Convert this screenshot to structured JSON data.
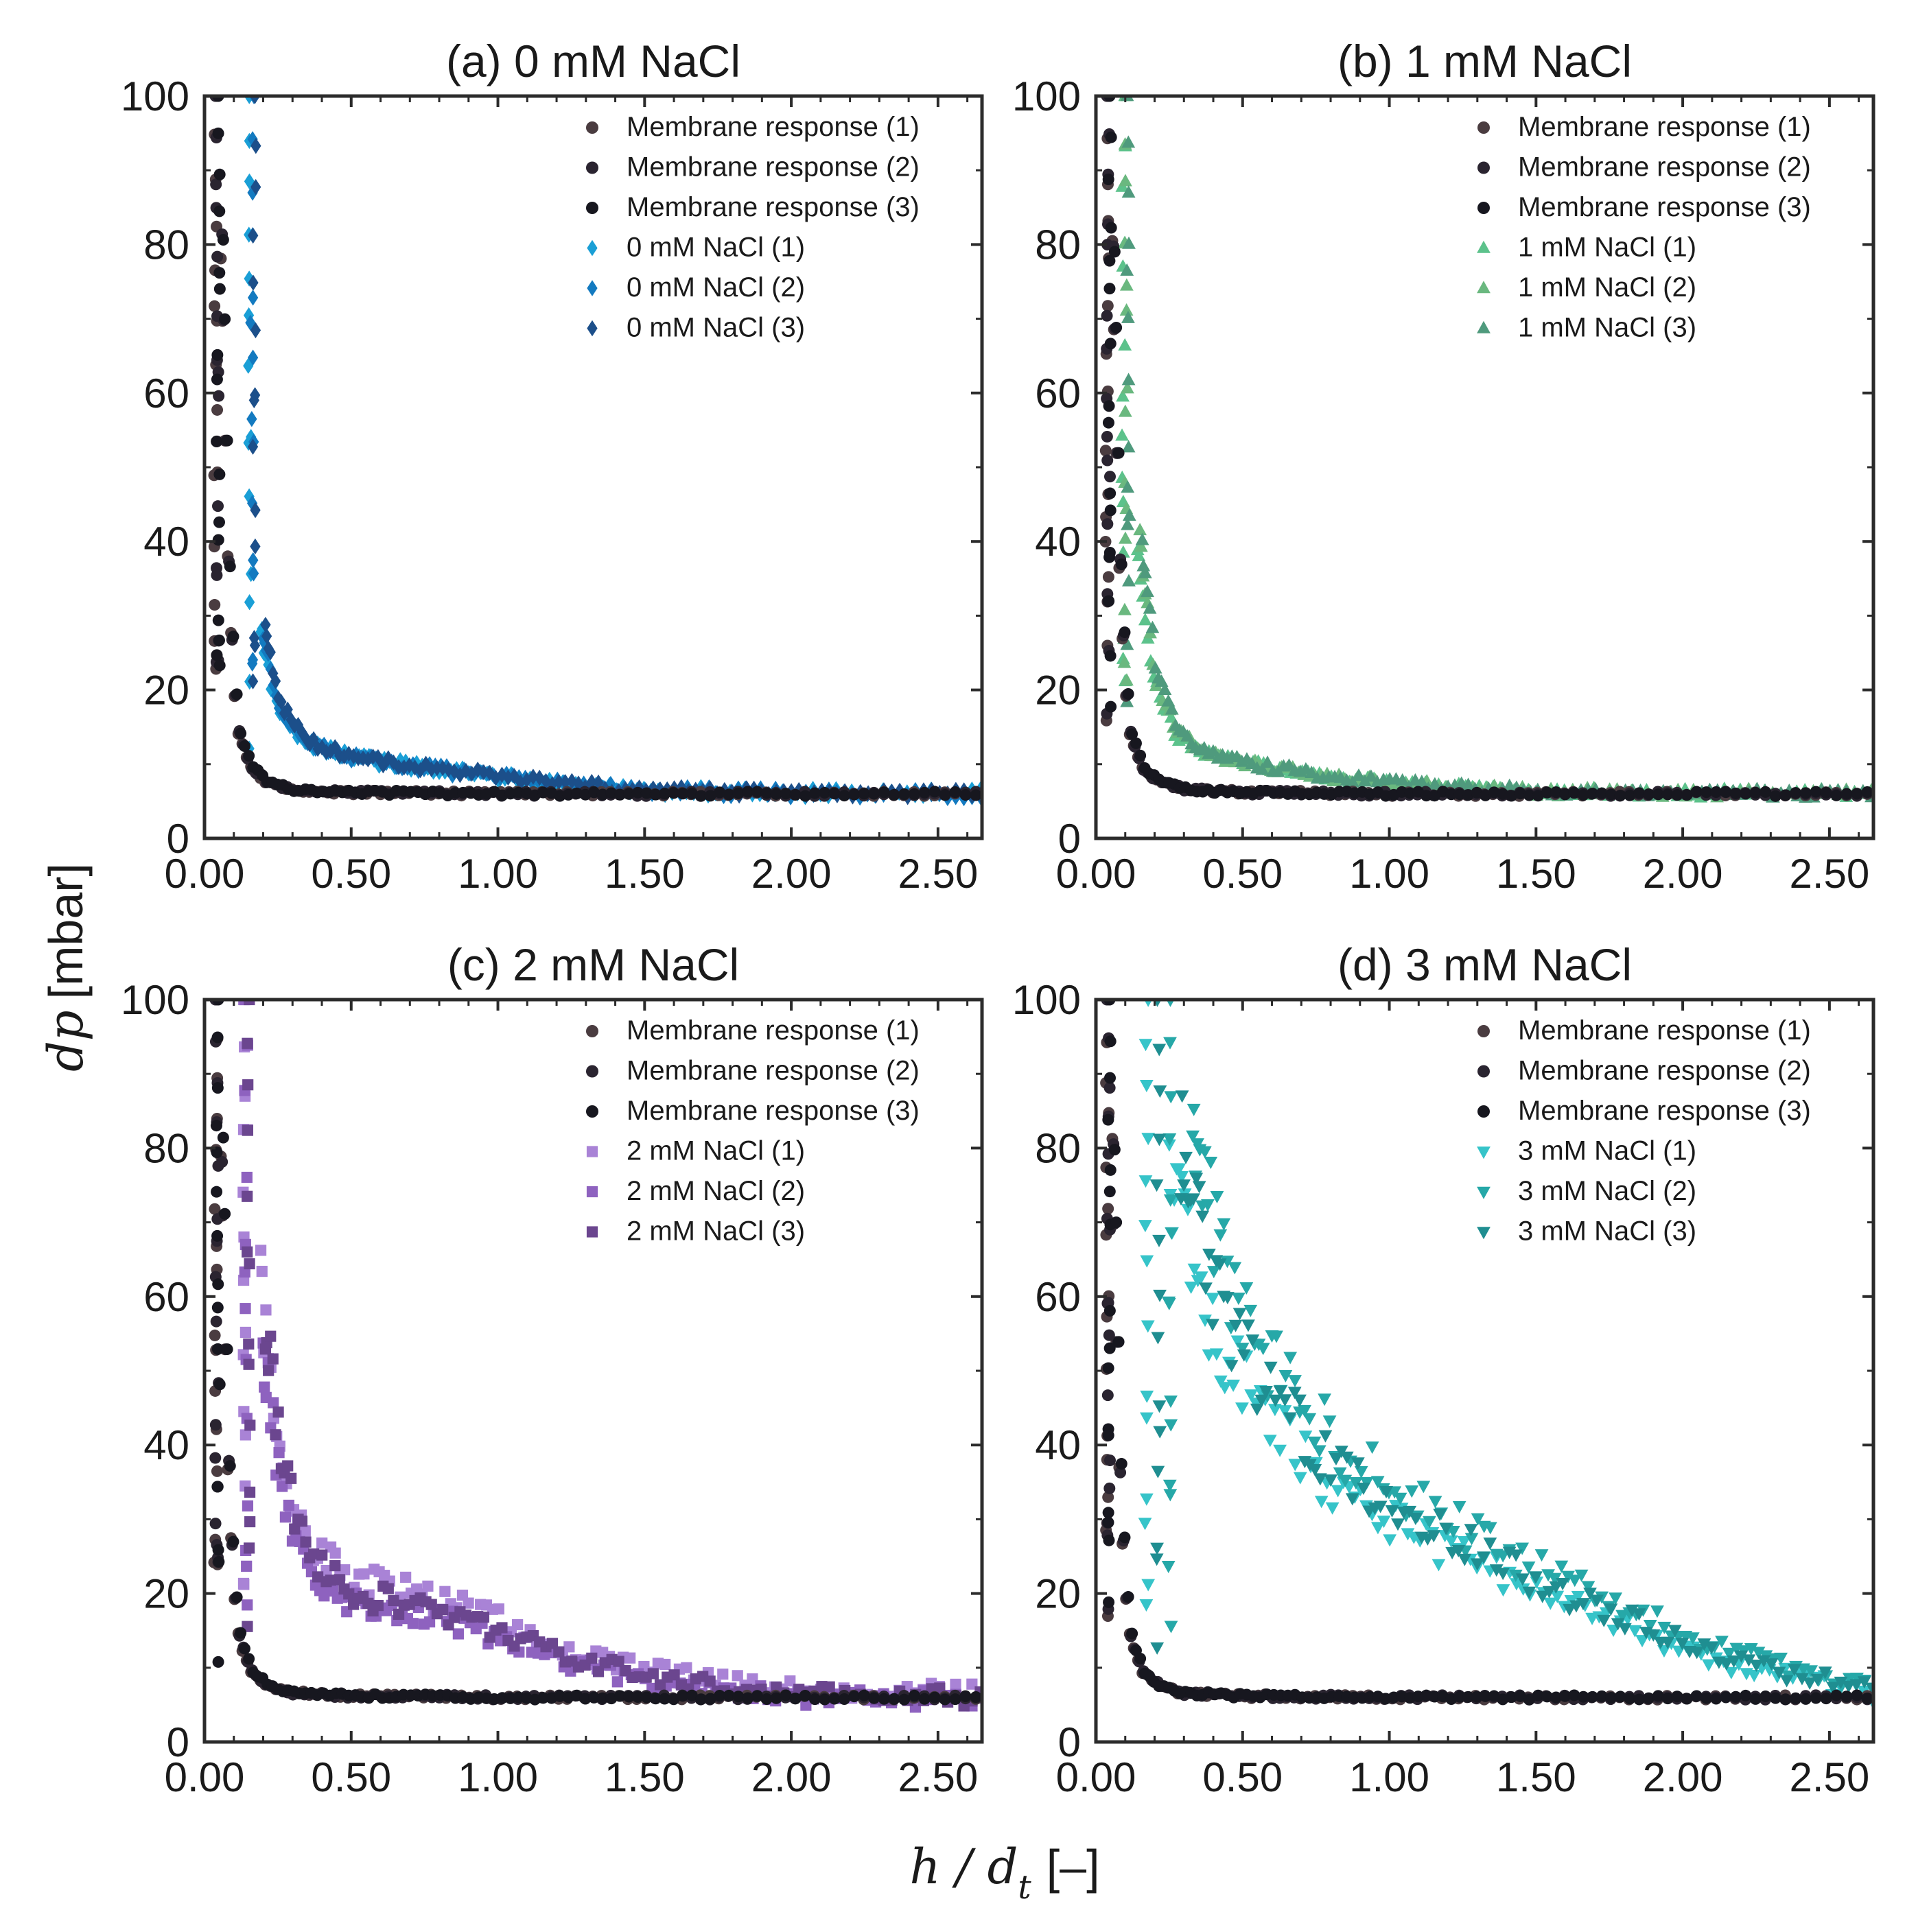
{
  "figure": {
    "ylabel": "[mbar]",
    "ylabel_var": "dp",
    "xlabel": "[–]",
    "xlabel_var": "h / d",
    "xlabel_sub": "t"
  },
  "chart_data": [
    {
      "type": "scatter",
      "title": "(a) 0 mM NaCl",
      "xlabel": "h / d_t [–]",
      "ylabel": "dp [mbar]",
      "xlim": [
        0.0,
        2.65
      ],
      "ylim": [
        0,
        100
      ],
      "xticks": [
        "0.00",
        "0.50",
        "1.00",
        "1.50",
        "2.00",
        "2.50"
      ],
      "yticks": [
        "0",
        "20",
        "40",
        "60",
        "80",
        "100"
      ],
      "legend_position": "top-right",
      "curve_type": "sample",
      "x0": 0.16,
      "plateau": 6.0,
      "mid": [
        [
          0.2,
          28
        ],
        [
          0.25,
          18
        ],
        [
          0.35,
          13
        ],
        [
          0.5,
          11
        ],
        [
          0.75,
          9.5
        ],
        [
          1.0,
          8.3
        ],
        [
          1.25,
          7.2
        ],
        [
          1.5,
          6.5
        ],
        [
          2.0,
          6.1
        ],
        [
          2.65,
          6.0
        ]
      ],
      "series": [
        {
          "name": "Membrane response (1)",
          "marker": "circle",
          "color": "#4a3c40"
        },
        {
          "name": "Membrane response (2)",
          "marker": "circle",
          "color": "#2a2430"
        },
        {
          "name": "Membrane response (3)",
          "marker": "circle",
          "color": "#17171f"
        },
        {
          "name": "0 mM NaCl (1)",
          "marker": "diamond",
          "color": "#1a9fd6"
        },
        {
          "name": "0 mM NaCl (2)",
          "marker": "diamond",
          "color": "#137ac0"
        },
        {
          "name": "0 mM NaCl (3)",
          "marker": "diamond",
          "color": "#1c4f8a"
        }
      ]
    },
    {
      "type": "scatter",
      "title": "(b) 1 mM NaCl",
      "xlabel": "h / d_t [–]",
      "ylabel": "dp [mbar]",
      "xlim": [
        0.0,
        2.65
      ],
      "ylim": [
        0,
        100
      ],
      "xticks": [
        "0.00",
        "0.50",
        "1.00",
        "1.50",
        "2.00",
        "2.50"
      ],
      "yticks": [
        "0",
        "20",
        "40",
        "60",
        "80",
        "100"
      ],
      "legend_position": "top-right",
      "curve_type": "sample",
      "x0": 0.1,
      "plateau": 6.0,
      "mid": [
        [
          0.15,
          40
        ],
        [
          0.2,
          22
        ],
        [
          0.28,
          14
        ],
        [
          0.4,
          11
        ],
        [
          0.6,
          9.5
        ],
        [
          0.8,
          8.3
        ],
        [
          1.0,
          7.5
        ],
        [
          1.25,
          6.8
        ],
        [
          1.5,
          6.3
        ],
        [
          2.0,
          6.1
        ],
        [
          2.65,
          6.0
        ]
      ],
      "series": [
        {
          "name": "Membrane response (1)",
          "marker": "circle",
          "color": "#4a3c40"
        },
        {
          "name": "Membrane response (2)",
          "marker": "circle",
          "color": "#2a2430"
        },
        {
          "name": "Membrane response (3)",
          "marker": "circle",
          "color": "#17171f"
        },
        {
          "name": "1 mM NaCl (1)",
          "marker": "triangle-up",
          "color": "#5cc28b"
        },
        {
          "name": "1 mM NaCl (2)",
          "marker": "triangle-up",
          "color": "#6ab87f"
        },
        {
          "name": "1 mM NaCl (3)",
          "marker": "triangle-up",
          "color": "#4f9a7d"
        }
      ]
    },
    {
      "type": "scatter",
      "title": "(c) 2 mM NaCl",
      "xlabel": "h / d_t [–]",
      "ylabel": "dp [mbar]",
      "xlim": [
        0.0,
        2.65
      ],
      "ylim": [
        0,
        100
      ],
      "xticks": [
        "0.00",
        "0.50",
        "1.00",
        "1.50",
        "2.00",
        "2.50"
      ],
      "yticks": [
        "0",
        "20",
        "40",
        "60",
        "80",
        "100"
      ],
      "legend_position": "top-right",
      "curve_type": "sample",
      "x0": 0.14,
      "plateau": 6.0,
      "mid": [
        [
          0.2,
          55
        ],
        [
          0.25,
          40
        ],
        [
          0.3,
          30
        ],
        [
          0.4,
          23
        ],
        [
          0.5,
          20
        ],
        [
          0.75,
          18
        ],
        [
          1.0,
          15
        ],
        [
          1.25,
          11
        ],
        [
          1.5,
          9
        ],
        [
          1.75,
          7.5
        ],
        [
          2.0,
          6.5
        ],
        [
          2.65,
          6.0
        ]
      ],
      "series": [
        {
          "name": "Membrane response (1)",
          "marker": "circle",
          "color": "#4a3c40"
        },
        {
          "name": "Membrane response (2)",
          "marker": "circle",
          "color": "#2a2430"
        },
        {
          "name": "Membrane response (3)",
          "marker": "circle",
          "color": "#17171f"
        },
        {
          "name": "2 mM NaCl (1)",
          "marker": "square",
          "color": "#a983d6"
        },
        {
          "name": "2 mM NaCl (2)",
          "marker": "square",
          "color": "#8e62bf"
        },
        {
          "name": "2 mM NaCl (3)",
          "marker": "square",
          "color": "#6b468f"
        }
      ]
    },
    {
      "type": "scatter",
      "title": "(d) 3 mM NaCl",
      "xlabel": "h / d_t [–]",
      "ylabel": "dp [mbar]",
      "xlim": [
        0.0,
        2.65
      ],
      "ylim": [
        0,
        100
      ],
      "xticks": [
        "0.00",
        "0.50",
        "1.00",
        "1.50",
        "2.00",
        "2.50"
      ],
      "yticks": [
        "0",
        "20",
        "40",
        "60",
        "80",
        "100"
      ],
      "legend_position": "top-right",
      "curve_type": "sample",
      "x0": 0.17,
      "plateau": 6.0,
      "mid": [
        [
          0.25,
          80
        ],
        [
          0.35,
          62
        ],
        [
          0.5,
          50
        ],
        [
          0.75,
          38
        ],
        [
          1.0,
          31
        ],
        [
          1.25,
          26
        ],
        [
          1.5,
          21
        ],
        [
          1.75,
          17
        ],
        [
          2.0,
          13
        ],
        [
          2.25,
          10
        ],
        [
          2.5,
          8
        ],
        [
          2.65,
          7
        ]
      ],
      "series": [
        {
          "name": "Membrane response (1)",
          "marker": "circle",
          "color": "#4a3c40"
        },
        {
          "name": "Membrane response (2)",
          "marker": "circle",
          "color": "#2a2430"
        },
        {
          "name": "Membrane response (3)",
          "marker": "circle",
          "color": "#17171f"
        },
        {
          "name": "3 mM NaCl (1)",
          "marker": "triangle-down",
          "color": "#36c4c9"
        },
        {
          "name": "3 mM NaCl (2)",
          "marker": "triangle-down",
          "color": "#26a8a8"
        },
        {
          "name": "3 mM NaCl (3)",
          "marker": "triangle-down",
          "color": "#1f8e91"
        }
      ]
    }
  ],
  "membrane_curve": {
    "x0": 0.04,
    "plateau": 6.0,
    "mid": [
      [
        0.06,
        80
      ],
      [
        0.08,
        40
      ],
      [
        0.1,
        22
      ],
      [
        0.12,
        14
      ],
      [
        0.16,
        9.5
      ],
      [
        0.22,
        7.5
      ],
      [
        0.3,
        6.6
      ],
      [
        0.5,
        6.2
      ],
      [
        1.0,
        6.0
      ],
      [
        2.65,
        6.0
      ]
    ]
  }
}
